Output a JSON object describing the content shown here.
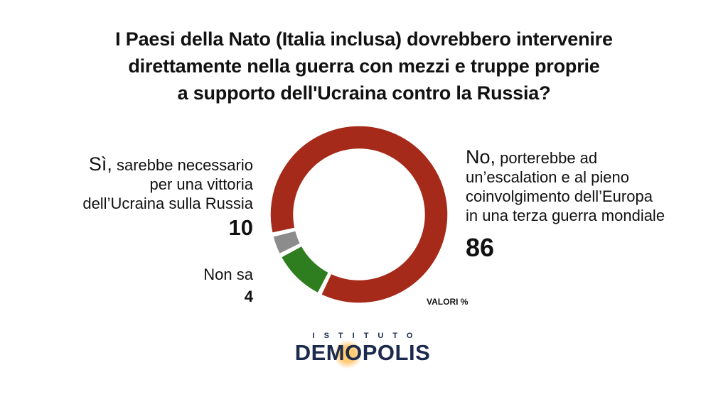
{
  "title": {
    "line1": "I Paesi della Nato (Italia inclusa) dovrebbero intervenire",
    "line2": "direttamente nella guerra con mezzi e truppe proprie",
    "line3": "a supporto dell'Ucraina contro la Russia?"
  },
  "labels": {
    "si": {
      "lead": "Sì,",
      "line1": "sarebbe necessario",
      "line2": "per una vittoria",
      "line3": "dell’Ucraina sulla Russia",
      "value": "10"
    },
    "no": {
      "lead": "No,",
      "line1": "porterebbe ad",
      "line2": "un’escalation e al pieno",
      "line3": "coinvolgimento dell’Europa",
      "line4": "in una terza guerra mondiale",
      "value": "86"
    },
    "ns": {
      "line1": "Non sa",
      "value": "4"
    }
  },
  "unit_note": "VALORI %",
  "logo": {
    "top": "ISTITUTO",
    "main": "DEMOPOLIS"
  },
  "chart_data": {
    "type": "pie",
    "donut": true,
    "unit": "%",
    "slices": [
      {
        "label": "No",
        "value": 86,
        "color": "#a52a1a"
      },
      {
        "label": "Sì",
        "value": 10,
        "color": "#2e7d1e"
      },
      {
        "label": "Non sa",
        "value": 4,
        "color": "#8c8c8c"
      }
    ]
  }
}
